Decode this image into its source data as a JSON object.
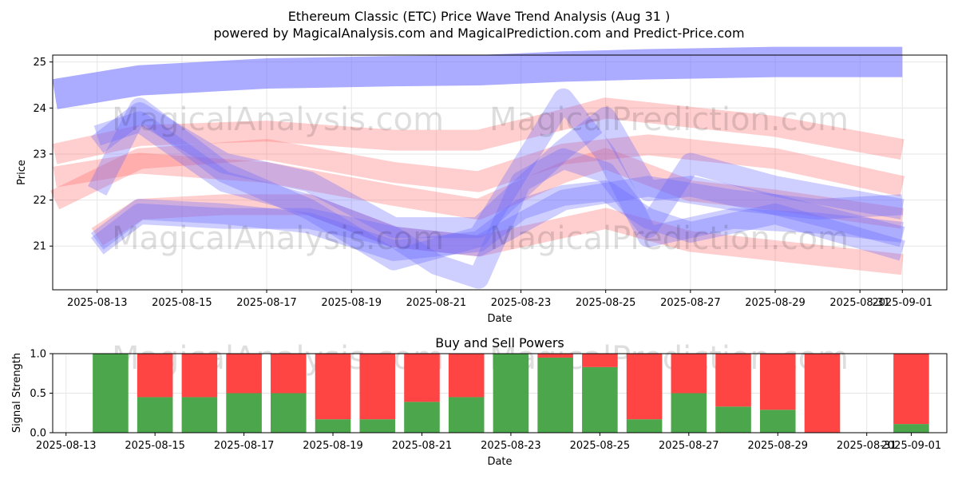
{
  "title_line1": "Ethereum Classic (ETC) Price Wave Trend Analysis (Aug 31 )",
  "title_line2": "powered by MagicalAnalysis.com and MagicalPrediction.com and Predict-Price.com",
  "watermarks": [
    "MagicalAnalysis.com",
    "MagicalPrediction.com"
  ],
  "colors": {
    "buy": "#4ca64c",
    "sell": "#ff4444",
    "band_blue": "#6666ff",
    "band_red": "#ff6666"
  },
  "chart_data": [
    {
      "type": "area",
      "title": "",
      "xlabel": "Date",
      "ylabel": "Price",
      "x_ticks": [
        "2025-08-13",
        "2025-08-15",
        "2025-08-17",
        "2025-08-19",
        "2025-08-21",
        "2025-08-23",
        "2025-08-25",
        "2025-08-27",
        "2025-08-29",
        "2025-08-31",
        "2025-09-01"
      ],
      "y_ticks": [
        21,
        22,
        23,
        24,
        25
      ],
      "ylim": [
        20.05,
        25.15
      ],
      "xlim": [
        "2025-08-12",
        "2025-09-02"
      ],
      "grid": true,
      "series": [
        {
          "color": "#6666ff",
          "x": [
            "2025-08-12",
            "2025-08-14",
            "2025-08-17",
            "2025-08-20",
            "2025-08-22",
            "2025-08-24",
            "2025-08-26",
            "2025-08-29",
            "2025-09-01"
          ],
          "values": [
            24.3,
            24.6,
            24.75,
            24.8,
            24.82,
            24.9,
            24.95,
            25.0,
            25.0
          ]
        },
        {
          "color": "#ff6666",
          "x": [
            "2025-08-12",
            "2025-08-14",
            "2025-08-17",
            "2025-08-20",
            "2025-08-22",
            "2025-08-24",
            "2025-08-25",
            "2025-08-27",
            "2025-08-29",
            "2025-09-01"
          ],
          "values": [
            23.0,
            23.4,
            23.5,
            23.3,
            23.3,
            23.75,
            24.0,
            23.8,
            23.6,
            23.1
          ]
        },
        {
          "color": "#ff6666",
          "x": [
            "2025-08-12",
            "2025-08-14",
            "2025-08-17",
            "2025-08-20",
            "2025-08-22",
            "2025-08-24",
            "2025-08-26",
            "2025-08-29",
            "2025-09-01"
          ],
          "values": [
            22.0,
            22.9,
            23.1,
            22.6,
            22.4,
            23.0,
            23.2,
            22.9,
            22.3
          ]
        },
        {
          "color": "#ff6666",
          "x": [
            "2025-08-12",
            "2025-08-14",
            "2025-08-17",
            "2025-08-20",
            "2025-08-22",
            "2025-08-24",
            "2025-08-25",
            "2025-08-27",
            "2025-08-29",
            "2025-09-01"
          ],
          "values": [
            22.5,
            22.8,
            22.6,
            22.1,
            21.8,
            22.6,
            22.9,
            22.2,
            22.0,
            21.6
          ]
        },
        {
          "color": "#ff6666",
          "x": [
            "2025-08-13",
            "2025-08-14",
            "2025-08-16",
            "2025-08-18",
            "2025-08-20",
            "2025-08-22",
            "2025-08-24",
            "2025-08-25",
            "2025-08-27",
            "2025-08-29",
            "2025-09-01"
          ],
          "values": [
            21.2,
            21.8,
            21.9,
            21.9,
            21.2,
            21.0,
            21.4,
            21.6,
            21.1,
            20.9,
            20.6
          ]
        },
        {
          "color": "#6666ff",
          "x": [
            "2025-08-13",
            "2025-08-14",
            "2025-08-16",
            "2025-08-18",
            "2025-08-20",
            "2025-08-21",
            "2025-08-22",
            "2025-08-23",
            "2025-08-24",
            "2025-08-25",
            "2025-08-26",
            "2025-08-27",
            "2025-08-29",
            "2025-09-01"
          ],
          "values": [
            21.0,
            21.7,
            21.6,
            21.6,
            21.2,
            20.6,
            20.3,
            22.4,
            22.9,
            22.6,
            21.4,
            22.8,
            22.3,
            21.8
          ]
        },
        {
          "color": "#6666ff",
          "x": [
            "2025-08-13",
            "2025-08-14",
            "2025-08-16",
            "2025-08-18",
            "2025-08-20",
            "2025-08-22",
            "2025-08-24",
            "2025-08-25",
            "2025-08-26",
            "2025-08-28",
            "2025-08-30",
            "2025-09-01"
          ],
          "values": [
            22.2,
            24.0,
            22.6,
            21.8,
            20.7,
            21.2,
            24.2,
            23.0,
            21.2,
            21.6,
            21.5,
            21.3
          ]
        },
        {
          "color": "#6666ff",
          "x": [
            "2025-08-13",
            "2025-08-14",
            "2025-08-16",
            "2025-08-18",
            "2025-08-20",
            "2025-08-22",
            "2025-08-24",
            "2025-08-26",
            "2025-08-28",
            "2025-08-30",
            "2025-09-01"
          ],
          "values": [
            23.4,
            23.7,
            22.4,
            21.9,
            21.2,
            21.0,
            22.0,
            22.3,
            22.0,
            21.8,
            21.9
          ]
        },
        {
          "color": "#6666ff",
          "x": [
            "2025-08-13",
            "2025-08-14",
            "2025-08-16",
            "2025-08-18",
            "2025-08-20",
            "2025-08-22",
            "2025-08-23",
            "2025-08-24",
            "2025-08-25",
            "2025-08-26",
            "2025-08-27",
            "2025-08-29",
            "2025-09-01"
          ],
          "values": [
            21.1,
            21.8,
            21.7,
            21.5,
            20.9,
            21.1,
            21.8,
            22.1,
            22.2,
            21.6,
            21.3,
            21.7,
            20.9
          ]
        },
        {
          "color": "#6666ff",
          "x": [
            "2025-08-13",
            "2025-08-14",
            "2025-08-16",
            "2025-08-18",
            "2025-08-20",
            "2025-08-22",
            "2025-08-24",
            "2025-08-25",
            "2025-08-26",
            "2025-08-27",
            "2025-08-29",
            "2025-09-01"
          ],
          "values": [
            23.2,
            23.9,
            22.8,
            22.4,
            21.4,
            21.4,
            23.1,
            23.8,
            22.2,
            22.3,
            21.9,
            21.2
          ]
        }
      ]
    },
    {
      "type": "bar",
      "title": "Buy and Sell Powers",
      "xlabel": "Date",
      "ylabel": "Signal Strength",
      "ylim": [
        0,
        1
      ],
      "y_ticks": [
        "0.0",
        "0.5",
        "1.0"
      ],
      "x_ticks": [
        "2025-08-13",
        "2025-08-15",
        "2025-08-17",
        "2025-08-19",
        "2025-08-21",
        "2025-08-23",
        "2025-08-25",
        "2025-08-27",
        "2025-08-29",
        "2025-08-31",
        "2025-09-01"
      ],
      "categories": [
        "2025-08-14",
        "2025-08-15",
        "2025-08-16",
        "2025-08-17",
        "2025-08-18",
        "2025-08-19",
        "2025-08-20",
        "2025-08-21",
        "2025-08-22",
        "2025-08-23",
        "2025-08-24",
        "2025-08-25",
        "2025-08-26",
        "2025-08-27",
        "2025-08-28",
        "2025-08-29",
        "2025-08-30",
        "2025-09-01"
      ],
      "series": [
        {
          "color": "#4ca64c",
          "values": [
            1.0,
            0.45,
            0.45,
            0.5,
            0.5,
            0.17,
            0.17,
            0.39,
            0.45,
            1.0,
            0.95,
            0.83,
            0.17,
            0.5,
            0.33,
            0.29,
            0.0,
            0.11
          ]
        },
        {
          "color": "#ff4444",
          "values": [
            0.0,
            0.55,
            0.55,
            0.5,
            0.5,
            0.83,
            0.83,
            0.61,
            0.55,
            0.0,
            0.05,
            0.17,
            0.83,
            0.5,
            0.67,
            0.71,
            1.0,
            0.89
          ]
        }
      ]
    }
  ]
}
